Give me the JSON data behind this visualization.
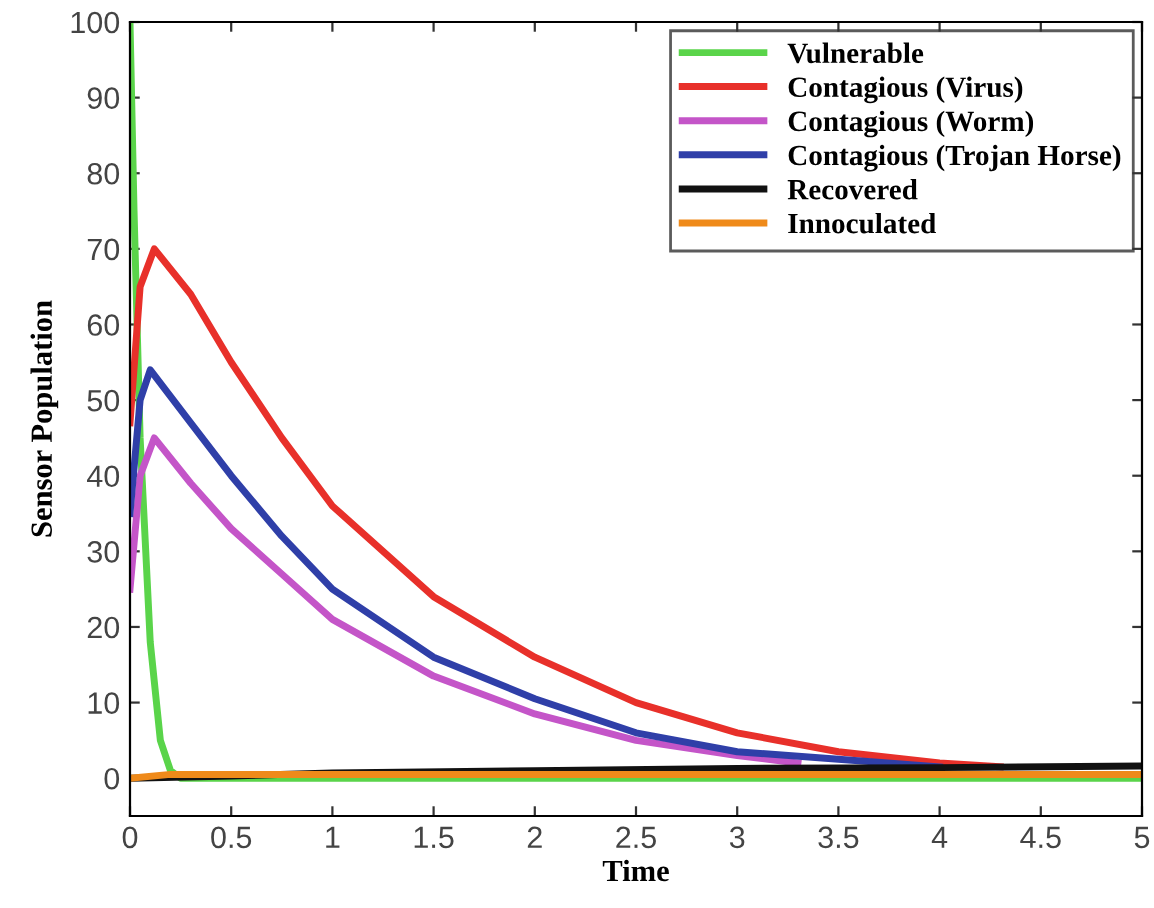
{
  "chart_data": {
    "type": "line",
    "xlabel": "Time",
    "ylabel": "Sensor Population",
    "xlim": [
      0,
      5
    ],
    "ylim": [
      -5,
      100
    ],
    "xticks": [
      0,
      0.5,
      1,
      1.5,
      2,
      2.5,
      3,
      3.5,
      4,
      4.5,
      5
    ],
    "yticks": [
      0,
      10,
      20,
      30,
      40,
      50,
      60,
      70,
      80,
      90,
      100
    ],
    "grid": false,
    "legend": "top right",
    "marker": "none",
    "line_style": "solid",
    "series": [
      {
        "name": "Vulnerable",
        "color": "#5ad44a",
        "x": [
          0,
          0.02,
          0.05,
          0.1,
          0.15,
          0.2,
          0.25,
          1,
          2,
          3,
          4,
          5
        ],
        "values": [
          100,
          75,
          45,
          18,
          5,
          1,
          0,
          0,
          0,
          0,
          0,
          0
        ]
      },
      {
        "name": "Contagious (Virus)",
        "color": "#e8302a",
        "x": [
          0,
          0.05,
          0.12,
          0.3,
          0.5,
          0.75,
          1,
          1.5,
          2,
          2.5,
          3,
          3.5,
          4,
          4.3
        ],
        "values": [
          47,
          65,
          70,
          64,
          55,
          45,
          36,
          24,
          16,
          10,
          6,
          3.5,
          2,
          1.5
        ]
      },
      {
        "name": "Contagious (Worm)",
        "color": "#c455c8",
        "x": [
          0,
          0.05,
          0.12,
          0.3,
          0.5,
          0.75,
          1,
          1.5,
          2,
          2.5,
          3,
          3.3
        ],
        "values": [
          25,
          40,
          45,
          39,
          33,
          27,
          21,
          13.5,
          8.5,
          5,
          3,
          2
        ]
      },
      {
        "name": "Contagious (Trojan Horse)",
        "color": "#2f3fa8",
        "x": [
          0,
          0.05,
          0.1,
          0.3,
          0.5,
          0.75,
          1,
          1.5,
          2,
          2.5,
          3,
          3.5,
          4
        ],
        "values": [
          35,
          50,
          54,
          47,
          40,
          32,
          25,
          16,
          10.5,
          6,
          3.5,
          2.5,
          1.5
        ]
      },
      {
        "name": "Recovered",
        "color": "#111111",
        "x": [
          0,
          0.5,
          1,
          2,
          3,
          4,
          5
        ],
        "values": [
          0,
          0.3,
          0.7,
          1,
          1.3,
          1.4,
          1.6
        ]
      },
      {
        "name": "Innoculated",
        "color": "#ef8a1a",
        "x": [
          0,
          0.2,
          1,
          2,
          3,
          4,
          5
        ],
        "values": [
          0,
          0.5,
          0.5,
          0.5,
          0.5,
          0.5,
          0.5
        ]
      }
    ]
  }
}
